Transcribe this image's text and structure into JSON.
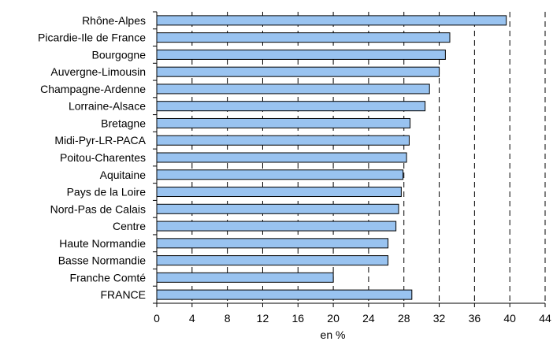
{
  "chart_data": {
    "type": "bar",
    "orientation": "horizontal",
    "categories": [
      "Rhône-Alpes",
      "Picardie-Ile de France",
      "Bourgogne",
      "Auvergne-Limousin",
      "Champagne-Ardenne",
      "Lorraine-Alsace",
      "Bretagne",
      "Midi-Pyr-LR-PACA",
      "Poitou-Charentes",
      "Aquitaine",
      "Pays de la Loire",
      "Nord-Pas de Calais",
      "Centre",
      "Haute Normandie",
      "Basse Normandie",
      "Franche Comté",
      "FRANCE"
    ],
    "values": [
      39.6,
      33.2,
      32.7,
      32.0,
      30.9,
      30.4,
      28.7,
      28.6,
      28.3,
      27.9,
      27.7,
      27.4,
      27.1,
      26.2,
      26.2,
      20.0,
      28.9
    ],
    "xlabel": "en %",
    "xlim": [
      0,
      44
    ],
    "xticks": [
      0,
      4,
      8,
      12,
      16,
      20,
      24,
      28,
      32,
      36,
      40,
      44
    ],
    "grid": "vertical dashed lines at tick positions, drawn behind bars",
    "bar_color": "#99c3f0"
  }
}
